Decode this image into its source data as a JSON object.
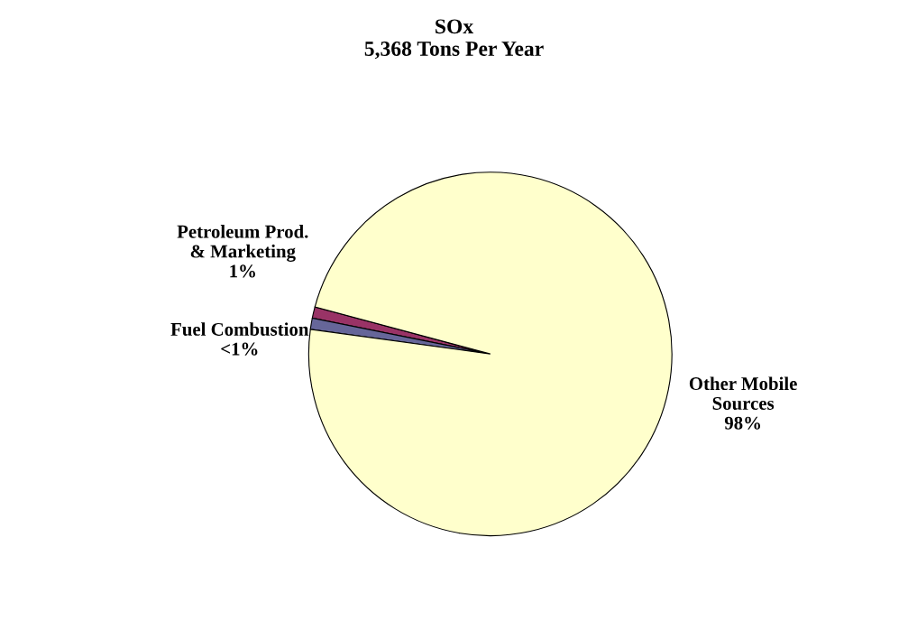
{
  "chart_data": {
    "type": "pie",
    "title": "SOx\n5,368 Tons Per Year",
    "categories": [
      "Petroleum Prod.\n& Marketing",
      "Fuel Combustion",
      "Other Mobile\nSources"
    ],
    "values": [
      1,
      1,
      98
    ],
    "value_labels": [
      "1%",
      "<1%",
      "98%"
    ],
    "colors": [
      "#993366",
      "#666699",
      "#ffffcc"
    ]
  }
}
